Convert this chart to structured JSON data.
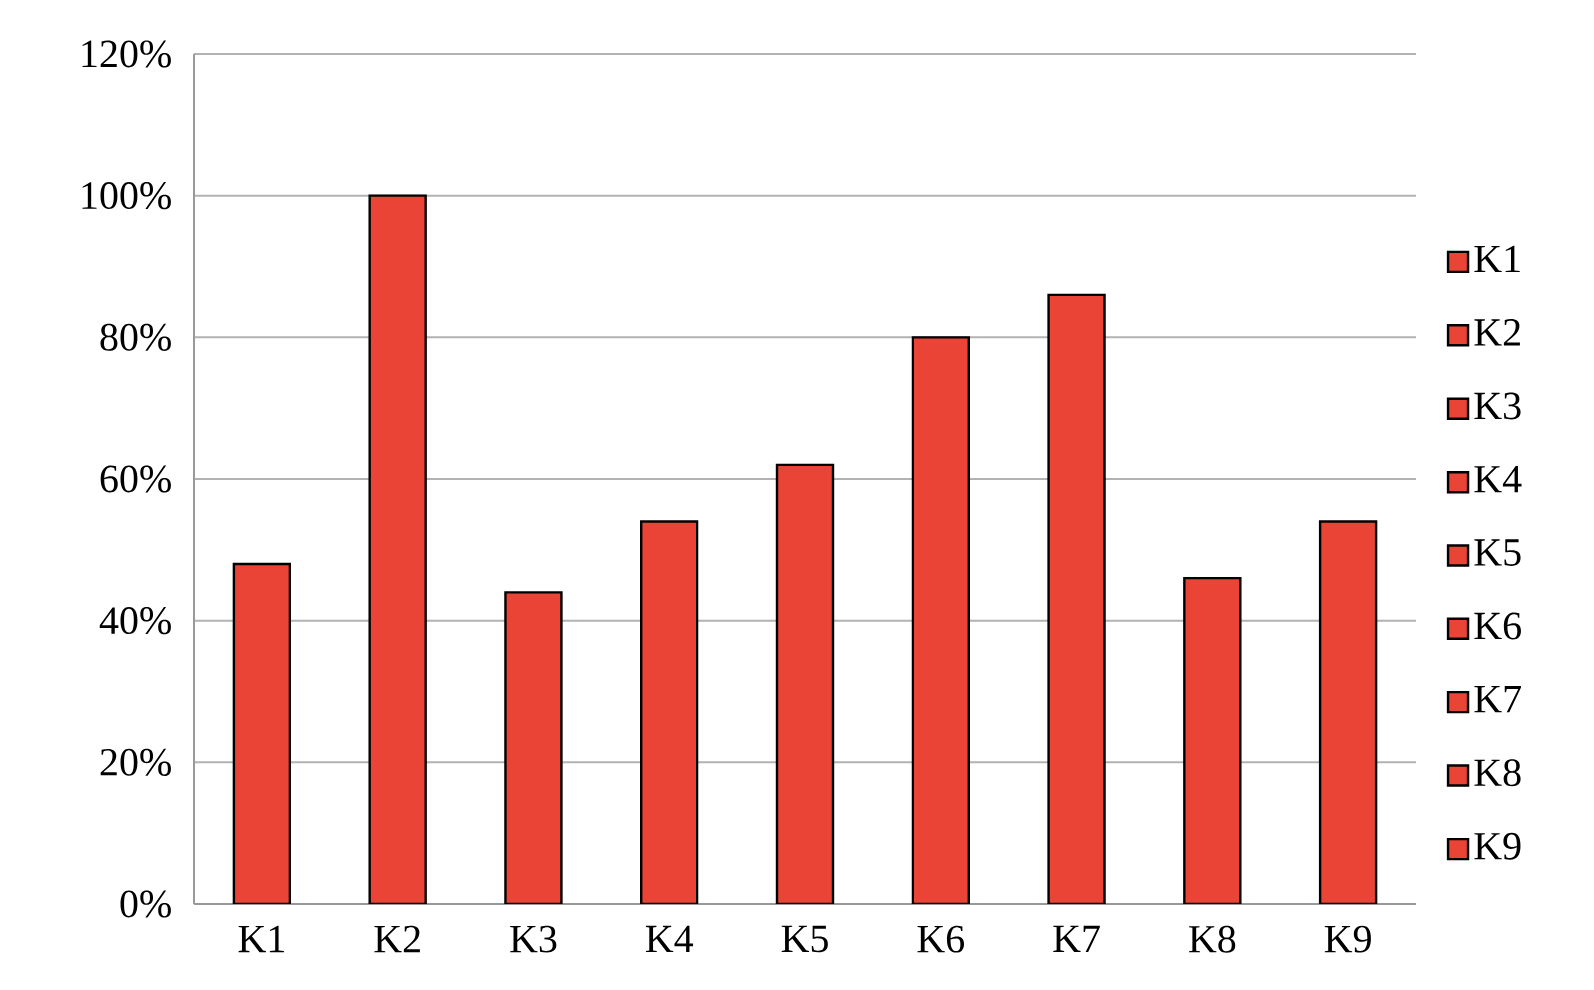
{
  "chart_data": {
    "type": "bar",
    "categories": [
      "K1",
      "K2",
      "K3",
      "K4",
      "K5",
      "K6",
      "K7",
      "K8",
      "K9"
    ],
    "series": [
      {
        "name": "K1",
        "color": "#e94436",
        "values": [
          48,
          null,
          null,
          null,
          null,
          null,
          null,
          null,
          null
        ]
      },
      {
        "name": "K2",
        "color": "#e94436",
        "values": [
          null,
          100,
          null,
          null,
          null,
          null,
          null,
          null,
          null
        ]
      },
      {
        "name": "K3",
        "color": "#e94436",
        "values": [
          null,
          null,
          44,
          null,
          null,
          null,
          null,
          null,
          null
        ]
      },
      {
        "name": "K4",
        "color": "#e94436",
        "values": [
          null,
          null,
          null,
          54,
          null,
          null,
          null,
          null,
          null
        ]
      },
      {
        "name": "K5",
        "color": "#e94436",
        "values": [
          null,
          null,
          null,
          null,
          62,
          null,
          null,
          null,
          null
        ]
      },
      {
        "name": "K6",
        "color": "#e94436",
        "values": [
          null,
          null,
          null,
          null,
          null,
          80,
          null,
          null,
          null
        ]
      },
      {
        "name": "K7",
        "color": "#e94436",
        "values": [
          null,
          null,
          null,
          null,
          null,
          null,
          86,
          null,
          null
        ]
      },
      {
        "name": "K8",
        "color": "#e94436",
        "values": [
          null,
          null,
          null,
          null,
          null,
          null,
          null,
          46,
          null
        ]
      },
      {
        "name": "K9",
        "color": "#e94436",
        "values": [
          null,
          null,
          null,
          null,
          null,
          null,
          null,
          null,
          54
        ]
      }
    ],
    "ylim": [
      0,
      120
    ],
    "yticks": [
      {
        "value": 0,
        "label": "0%"
      },
      {
        "value": 20,
        "label": "20%"
      },
      {
        "value": 40,
        "label": "40%"
      },
      {
        "value": 60,
        "label": "60%"
      },
      {
        "value": 80,
        "label": "80%"
      },
      {
        "value": 100,
        "label": "100%"
      },
      {
        "value": 120,
        "label": "120%"
      }
    ],
    "grid": "y",
    "legend": "right"
  }
}
